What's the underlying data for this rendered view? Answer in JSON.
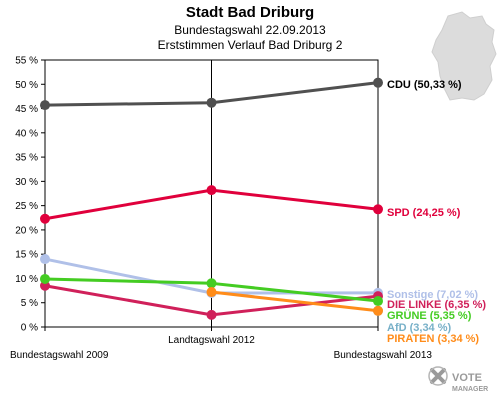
{
  "chart_data": {
    "type": "line",
    "title": "Stadt Bad Driburg",
    "subtitle": "Bundestagswahl 22.09.2013",
    "subtitle2": "Erststimmen Verlauf Bad Driburg 2",
    "categories": [
      "Bundestagswahl 2009",
      "Landtagswahl 2012",
      "Bundestagswahl 2013"
    ],
    "y_ticks": [
      "0 %",
      "5 %",
      "10 %",
      "15 %",
      "20 %",
      "25 %",
      "30 %",
      "35 %",
      "40 %",
      "45 %",
      "50 %",
      "55 %"
    ],
    "ylim": [
      0,
      55
    ],
    "grid": false,
    "series": [
      {
        "name": "CDU",
        "label": "CDU (50,33 %)",
        "color": "#505050",
        "labelColor": "#000000",
        "values": [
          45.7,
          46.2,
          50.33
        ]
      },
      {
        "name": "SPD",
        "label": "SPD (24,25 %)",
        "color": "#e0003c",
        "labelColor": "#e0003c",
        "values": [
          22.3,
          28.2,
          24.25
        ]
      },
      {
        "name": "Sonstige",
        "label": "Sonstige (7,02 %)",
        "color": "#b0c0e8",
        "labelColor": "#b0c0e8",
        "values": [
          14.0,
          7.0,
          7.02
        ]
      },
      {
        "name": "DIE LINKE",
        "label": "DIE LINKE (6,35 %)",
        "color": "#d0205a",
        "labelColor": "#d0205a",
        "values": [
          8.5,
          2.5,
          6.35
        ]
      },
      {
        "name": "GRÜNE",
        "label": "GRÜNE (5,35 %)",
        "color": "#44cc22",
        "labelColor": "#44cc22",
        "values": [
          9.9,
          9.0,
          5.35
        ]
      },
      {
        "name": "AfD",
        "label": "AfD (3,34 %)",
        "color": "#77b0c8",
        "labelColor": "#77b0c8",
        "values": [
          null,
          null,
          3.34
        ]
      },
      {
        "name": "PIRATEN",
        "label": "PIRATEN (3,34 %)",
        "color": "#ff8c1a",
        "labelColor": "#ff8c1a",
        "values": [
          null,
          7.2,
          3.34
        ]
      }
    ]
  },
  "logo": {
    "line1": "VOTE",
    "line2": "MANAGER"
  }
}
